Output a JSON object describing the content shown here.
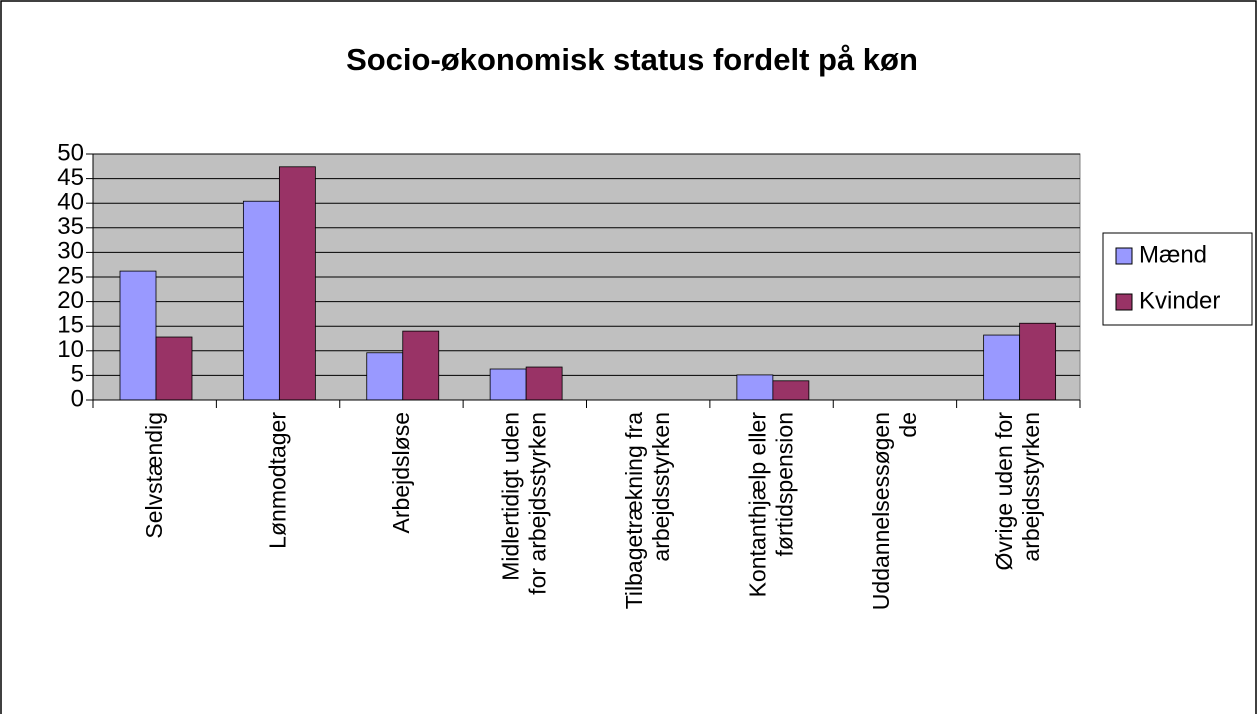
{
  "chart_data": {
    "type": "bar",
    "title": "Socio-økonomisk status fordelt på køn",
    "categories": [
      [
        "Selvstændig"
      ],
      [
        "Lønmodtager"
      ],
      [
        "Arbejdsløse"
      ],
      [
        "Midlertidigt uden",
        "for arbejdsstyrken"
      ],
      [
        "Tilbagetrækning fra",
        "arbejdsstyrken"
      ],
      [
        "Kontanthjælp eller",
        "førtidspension"
      ],
      [
        "Uddannelsessøgen",
        "de"
      ],
      [
        "Øvrige uden for",
        "arbejdsstyrken"
      ]
    ],
    "series": [
      {
        "name": "Mænd",
        "color": "#9999ff",
        "values": [
          26.2,
          40.4,
          9.6,
          6.3,
          0,
          5.1,
          0,
          13.2
        ]
      },
      {
        "name": "Kvinder",
        "color": "#993366",
        "values": [
          12.8,
          47.4,
          14.0,
          6.7,
          0,
          3.9,
          0,
          15.6
        ]
      }
    ],
    "ylim": [
      0,
      50
    ],
    "yticks": [
      0,
      5,
      10,
      15,
      20,
      25,
      30,
      35,
      40,
      45,
      50
    ],
    "grid": true,
    "legend": "right"
  }
}
